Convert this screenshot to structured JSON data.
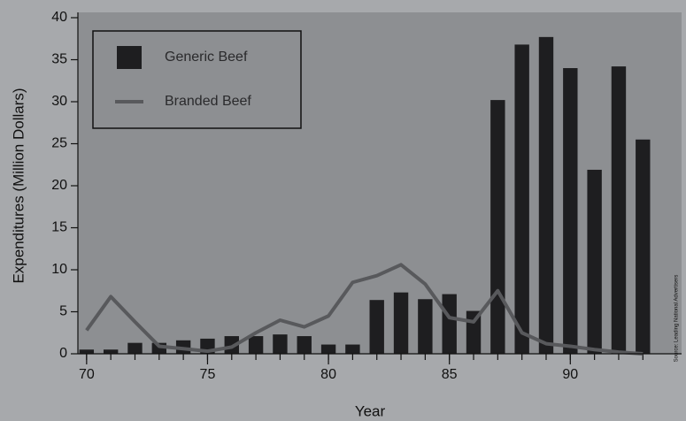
{
  "chart_data": {
    "type": "bar",
    "x_label": "Year",
    "y_label": "Expenditures (Million Dollars)",
    "source": "Source: Leading National Advertisers",
    "x": [
      70,
      71,
      72,
      73,
      74,
      75,
      76,
      77,
      78,
      79,
      80,
      81,
      82,
      83,
      84,
      85,
      86,
      87,
      88,
      89,
      90,
      91,
      92,
      93
    ],
    "series": [
      {
        "name": "Generic Beef",
        "type": "bar",
        "color": "#1e1e20",
        "values": [
          0.5,
          0.5,
          1.3,
          1.3,
          1.6,
          1.8,
          2.1,
          2.1,
          2.3,
          2.1,
          1.1,
          1.1,
          6.4,
          7.3,
          6.5,
          7.1,
          5.1,
          30.2,
          36.8,
          37.7,
          34.0,
          21.9,
          34.2,
          25.5
        ]
      },
      {
        "name": "Branded Beef",
        "type": "line",
        "color": "#58595c",
        "values": [
          2.8,
          6.8,
          3.8,
          0.9,
          0.6,
          0.3,
          0.8,
          2.5,
          4.0,
          3.2,
          4.5,
          8.5,
          9.3,
          10.6,
          8.3,
          4.3,
          3.8,
          7.5,
          2.5,
          1.2,
          0.9,
          0.5,
          0.2,
          0.0
        ]
      }
    ],
    "xlim": [
      69.64,
      94.6
    ],
    "xticks": [
      70,
      75,
      80,
      85,
      90
    ],
    "ylim": [
      0,
      40
    ],
    "yticks": [
      0,
      5,
      10,
      15,
      20,
      25,
      30,
      35,
      40
    ],
    "legend": "top-left"
  }
}
